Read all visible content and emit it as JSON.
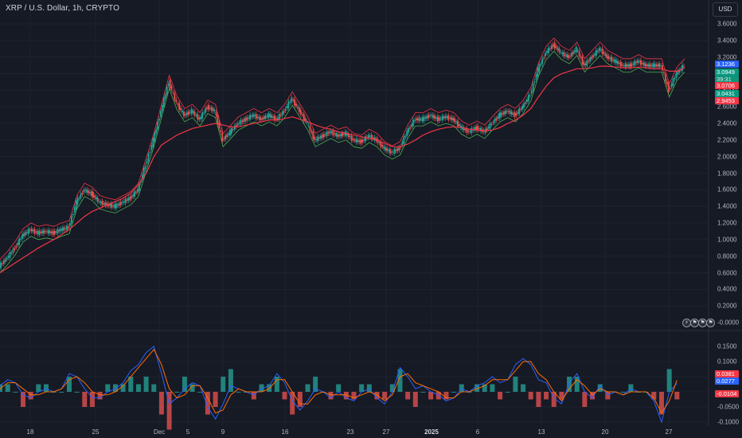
{
  "symbol_title": "XRP / U.S. Dollar, 1h, CRYPTO",
  "currency_button": "USD",
  "colors": {
    "background": "#161a25",
    "candle_up": "#26a69a",
    "candle_down": "#ef5350",
    "ma_line": "#f23645",
    "band_upper": "#f23645",
    "band_lower": "#4caf50",
    "macd_line": "#2962ff",
    "signal_line": "#ff6d00",
    "badge_blue": "#2962ff",
    "badge_green": "#089981",
    "badge_red": "#f23645"
  },
  "price_axis": {
    "labels": [
      "3.6000",
      "3.4000",
      "3.2000",
      "3.0000",
      "2.8000",
      "2.6000",
      "2.4000",
      "2.2000",
      "2.0000",
      "1.8000",
      "1.6000",
      "1.4000",
      "1.2000",
      "1.0000",
      "0.8000",
      "0.6000",
      "0.4000",
      "0.2000",
      "-0.0000"
    ],
    "values": [
      3.6,
      3.4,
      3.2,
      3.0,
      2.8,
      2.6,
      2.4,
      2.2,
      2.0,
      1.8,
      1.6,
      1.4,
      1.2,
      1.0,
      0.8,
      0.6,
      0.4,
      0.2,
      0.0
    ]
  },
  "price_badges": [
    {
      "text": "3.1236",
      "value": 3.1236,
      "color": "#2962ff"
    },
    {
      "text": "3.0949",
      "value": 3.0949,
      "color": "#089981"
    },
    {
      "text": "39:31",
      "value": null,
      "color": "#0f9478"
    },
    {
      "text": "3.0706",
      "value": 3.0706,
      "color": "#f23645"
    },
    {
      "text": "3.0431",
      "value": 3.0431,
      "color": "#089981"
    },
    {
      "text": "2.9453",
      "value": 2.9453,
      "color": "#f23645"
    }
  ],
  "osc_axis": {
    "labels": [
      "0.1500",
      "0.1000",
      "0.0500",
      "-0.0500",
      "-0.1000"
    ],
    "values": [
      0.15,
      0.1,
      0.05,
      -0.05,
      -0.1
    ]
  },
  "osc_badges": [
    {
      "text": "0.0381",
      "value": 0.0381,
      "color": "#f23645"
    },
    {
      "text": "0.0277",
      "value": 0.0277,
      "color": "#2962ff"
    },
    {
      "text": "-0.0104",
      "value": -0.0104,
      "color": "#f23645"
    }
  ],
  "time_axis": {
    "labels": [
      "18",
      "25",
      "Dec",
      "5",
      "9",
      "16",
      "23",
      "27",
      "2025",
      "6",
      "13",
      "20",
      "27"
    ],
    "bold": [
      false,
      false,
      false,
      false,
      false,
      false,
      false,
      false,
      true,
      false,
      false,
      false,
      false
    ]
  },
  "event_icons": [
    "lightning-icon",
    "flag-icon",
    "flag-icon",
    "flag-icon"
  ],
  "chart_data": {
    "type": "line",
    "title": "XRP / U.S. Dollar, 1h, CRYPTO",
    "series": [
      {
        "values": [
          0.68,
          0.78,
          0.9,
          1.05,
          1.12,
          1.08,
          1.1,
          1.08,
          1.12,
          1.15,
          1.45,
          1.6,
          1.55,
          1.45,
          1.42,
          1.4,
          1.45,
          1.5,
          1.6,
          1.9,
          2.2,
          2.55,
          2.9,
          2.65,
          2.5,
          2.55,
          2.45,
          2.6,
          2.55,
          2.2,
          2.3,
          2.4,
          2.45,
          2.5,
          2.45,
          2.5,
          2.45,
          2.55,
          2.7,
          2.55,
          2.4,
          2.2,
          2.25,
          2.3,
          2.25,
          2.28,
          2.2,
          2.18,
          2.25,
          2.2,
          2.1,
          2.05,
          2.1,
          2.3,
          2.45,
          2.45,
          2.5,
          2.45,
          2.48,
          2.45,
          2.35,
          2.3,
          2.35,
          2.3,
          2.4,
          2.5,
          2.55,
          2.5,
          2.6,
          2.75,
          3.05,
          3.25,
          3.35,
          3.25,
          3.2,
          3.3,
          3.1,
          3.2,
          3.3,
          3.2,
          3.15,
          3.1,
          3.1,
          3.15,
          3.1,
          3.1,
          3.1,
          2.8,
          3.0,
          3.1
        ]
      },
      {
        "values": [
          0.6,
          0.66,
          0.72,
          0.78,
          0.84,
          0.9,
          0.95,
          1.0,
          1.06,
          1.12,
          1.2,
          1.28,
          1.34,
          1.38,
          1.42,
          1.46,
          1.5,
          1.56,
          1.66,
          1.8,
          2.0,
          2.14,
          2.2,
          2.26,
          2.3,
          2.34,
          2.36,
          2.38,
          2.4,
          2.38,
          2.36,
          2.36,
          2.38,
          2.4,
          2.42,
          2.44,
          2.44,
          2.46,
          2.48,
          2.45,
          2.42,
          2.38,
          2.35,
          2.33,
          2.3,
          2.28,
          2.26,
          2.24,
          2.22,
          2.2,
          2.16,
          2.12,
          2.12,
          2.15,
          2.2,
          2.26,
          2.3,
          2.33,
          2.35,
          2.36,
          2.35,
          2.33,
          2.32,
          2.31,
          2.32,
          2.35,
          2.4,
          2.44,
          2.5,
          2.58,
          2.72,
          2.85,
          2.95,
          3.0,
          3.03,
          3.06,
          3.06,
          3.07,
          3.09,
          3.09,
          3.08,
          3.07,
          3.07,
          3.08,
          3.07,
          3.06,
          3.06,
          3.03,
          3.03,
          3.07
        ]
      },
      {
        "values": [
          0.02,
          0.04,
          0.03,
          -0.01,
          -0.02,
          0.0,
          0.01,
          0.0,
          0.01,
          0.06,
          0.05,
          0.01,
          -0.02,
          -0.02,
          0.0,
          0.01,
          0.03,
          0.07,
          0.09,
          0.13,
          0.15,
          0.06,
          -0.04,
          -0.02,
          0.01,
          0.03,
          0.02,
          -0.05,
          -0.09,
          -0.04,
          0.02,
          0.01,
          0.0,
          -0.01,
          0.01,
          0.02,
          0.06,
          0.03,
          -0.03,
          -0.06,
          -0.03,
          0.01,
          0.0,
          -0.02,
          0.0,
          -0.02,
          -0.03,
          0.0,
          0.01,
          -0.02,
          -0.04,
          0.0,
          0.08,
          0.05,
          0.01,
          0.02,
          0.0,
          -0.01,
          -0.03,
          -0.02,
          0.01,
          0.0,
          0.02,
          0.03,
          0.05,
          0.03,
          0.04,
          0.09,
          0.11,
          0.09,
          0.04,
          0.03,
          -0.02,
          -0.04,
          0.03,
          0.06,
          0.0,
          -0.02,
          0.02,
          -0.01,
          0.0,
          -0.01,
          0.01,
          0.0,
          0.0,
          -0.03,
          -0.1,
          0.0,
          0.028
        ]
      },
      {
        "values": [
          0.01,
          0.03,
          0.03,
          0.01,
          -0.01,
          -0.01,
          0.0,
          0.0,
          0.01,
          0.04,
          0.05,
          0.03,
          0.0,
          -0.01,
          -0.01,
          0.0,
          0.02,
          0.05,
          0.08,
          0.11,
          0.14,
          0.09,
          0.01,
          -0.02,
          -0.01,
          0.02,
          0.02,
          -0.02,
          -0.07,
          -0.06,
          -0.01,
          0.01,
          0.0,
          0.0,
          0.0,
          0.01,
          0.04,
          0.04,
          0.0,
          -0.04,
          -0.04,
          -0.01,
          0.0,
          -0.01,
          -0.01,
          -0.01,
          -0.02,
          -0.01,
          0.0,
          -0.01,
          -0.03,
          -0.01,
          0.05,
          0.06,
          0.03,
          0.02,
          0.01,
          0.0,
          -0.02,
          -0.02,
          0.0,
          0.0,
          0.01,
          0.02,
          0.04,
          0.04,
          0.04,
          0.07,
          0.1,
          0.1,
          0.06,
          0.04,
          0.0,
          -0.03,
          0.01,
          0.04,
          0.02,
          -0.01,
          0.01,
          0.0,
          0.0,
          -0.01,
          0.0,
          0.0,
          0.0,
          -0.02,
          -0.07,
          -0.03,
          0.038
        ]
      }
    ],
    "price_ylim": [
      0.0,
      3.6
    ],
    "osc_ylim": [
      -0.1,
      0.15
    ],
    "x_ticks": [
      "18",
      "25",
      "Dec",
      "5",
      "9",
      "16",
      "23",
      "27",
      "2025",
      "6",
      "13",
      "20",
      "27"
    ]
  }
}
